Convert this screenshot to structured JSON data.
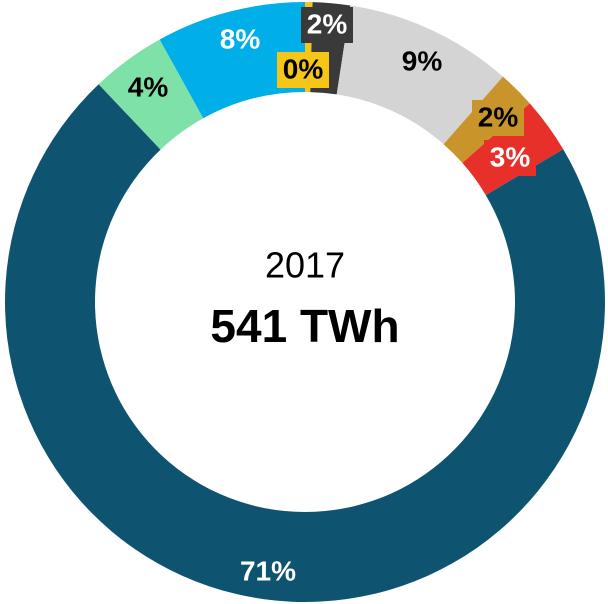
{
  "chart_data": {
    "type": "donut",
    "subtitle": "2017",
    "title": "541 TWh",
    "values": [
      0.4,
      2,
      9,
      2,
      3,
      71,
      4,
      8
    ],
    "value_labels": [
      "0%",
      "2%",
      "9%",
      "2%",
      "3%",
      "71%",
      "4%",
      "8%"
    ],
    "colors": [
      "#f5c518",
      "#3a3a3a",
      "#d4d4d4",
      "#c9952b",
      "#e8302a",
      "#0e5470",
      "#7ee2a8",
      "#00aee8"
    ]
  }
}
